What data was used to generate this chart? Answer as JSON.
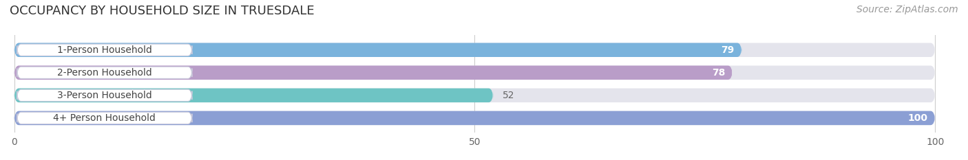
{
  "title": "OCCUPANCY BY HOUSEHOLD SIZE IN TRUESDALE",
  "source": "Source: ZipAtlas.com",
  "categories": [
    "1-Person Household",
    "2-Person Household",
    "3-Person Household",
    "4+ Person Household"
  ],
  "values": [
    79,
    78,
    52,
    100
  ],
  "bar_colors": [
    "#7ab3dc",
    "#b99dc8",
    "#6ec4c4",
    "#8b9fd4"
  ],
  "bar_bg_color": "#e4e4ec",
  "xlim": [
    0,
    100
  ],
  "xticks": [
    0,
    50,
    100
  ],
  "value_label_colors": [
    "#ffffff",
    "#ffffff",
    "#777777",
    "#ffffff"
  ],
  "background_color": "#ffffff",
  "title_fontsize": 13,
  "source_fontsize": 10,
  "tick_fontsize": 10,
  "bar_label_fontsize": 10,
  "value_fontsize": 10
}
